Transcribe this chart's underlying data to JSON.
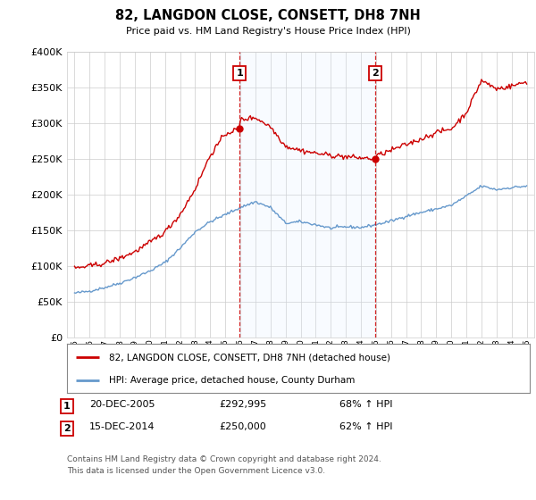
{
  "title": "82, LANGDON CLOSE, CONSETT, DH8 7NH",
  "subtitle": "Price paid vs. HM Land Registry's House Price Index (HPI)",
  "legend_line1": "82, LANGDON CLOSE, CONSETT, DH8 7NH (detached house)",
  "legend_line2": "HPI: Average price, detached house, County Durham",
  "footnote_line1": "Contains HM Land Registry data © Crown copyright and database right 2024.",
  "footnote_line2": "This data is licensed under the Open Government Licence v3.0.",
  "sale1_date": 2005.96,
  "sale1_price": 292995,
  "sale1_label": "20-DEC-2005",
  "sale1_price_str": "£292,995",
  "sale1_pct": "68% ↑ HPI",
  "sale2_date": 2014.96,
  "sale2_price": 250000,
  "sale2_label": "15-DEC-2014",
  "sale2_price_str": "£250,000",
  "sale2_pct": "62% ↑ HPI",
  "ylim": [
    0,
    400000
  ],
  "xlim": [
    1994.5,
    2025.5
  ],
  "red_color": "#cc0000",
  "blue_color": "#6699cc",
  "shade_color": "#ddeeff",
  "bg_color": "#ffffff",
  "grid_color": "#cccccc",
  "hpi_control": {
    "1995": 62000,
    "1996": 65000,
    "1997": 70000,
    "1998": 76000,
    "1999": 84000,
    "2000": 93000,
    "2001": 105000,
    "2002": 125000,
    "2003": 148000,
    "2004": 162000,
    "2005": 172000,
    "2006": 182000,
    "2007": 190000,
    "2008": 182000,
    "2009": 160000,
    "2010": 162000,
    "2011": 158000,
    "2012": 153000,
    "2013": 155000,
    "2014": 154000,
    "2015": 158000,
    "2016": 163000,
    "2017": 170000,
    "2018": 175000,
    "2019": 180000,
    "2020": 185000,
    "2021": 198000,
    "2022": 212000,
    "2023": 207000,
    "2024": 210000,
    "2025": 212000
  },
  "red_control": {
    "1995": 97000,
    "1996": 100000,
    "1997": 104000,
    "1998": 111000,
    "1999": 120000,
    "2000": 133000,
    "2001": 148000,
    "2002": 172000,
    "2003": 208000,
    "2004": 255000,
    "2005": 285000,
    "2005.96": 292995,
    "2006": 305000,
    "2007": 308000,
    "2008": 295000,
    "2009": 268000,
    "2010": 262000,
    "2011": 258000,
    "2012": 255000,
    "2013": 253000,
    "2014.96": 250000,
    "2015": 254000,
    "2016": 262000,
    "2017": 270000,
    "2018": 278000,
    "2019": 287000,
    "2020": 292000,
    "2021": 315000,
    "2022": 360000,
    "2023": 348000,
    "2024": 352000,
    "2025": 358000
  }
}
